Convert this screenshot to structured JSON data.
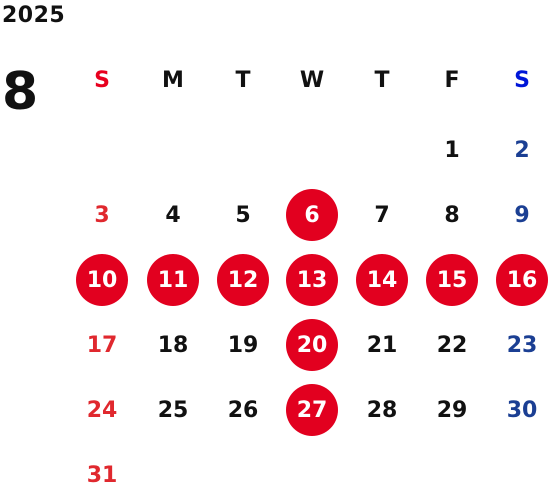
{
  "calendar": {
    "year": "2025",
    "month": "8",
    "weekdays": [
      "S",
      "M",
      "T",
      "W",
      "T",
      "F",
      "S"
    ],
    "first_weekday": 5,
    "days_in_month": 31,
    "highlighted_days": [
      6,
      10,
      11,
      12,
      13,
      14,
      15,
      16,
      20,
      27
    ]
  },
  "colors": {
    "sunday_header": "#e8001f",
    "saturday_header": "#0016d8",
    "sunday_date": "#e0282e",
    "saturday_date": "#1b3f93",
    "weekday": "#111111",
    "holiday_circle": "#e2001f"
  }
}
